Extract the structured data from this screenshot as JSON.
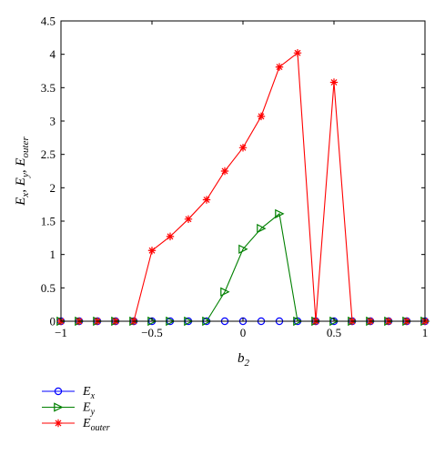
{
  "chart_data": {
    "type": "line",
    "xlabel": {
      "base": "b",
      "sub": "2"
    },
    "ylabel": [
      {
        "base": "E",
        "sub": "x",
        "sep": ", "
      },
      {
        "base": "E",
        "sub": "y",
        "sep": ", "
      },
      {
        "base": "E",
        "sub": "outer",
        "sep": ""
      }
    ],
    "xlim": [
      -1,
      1
    ],
    "ylim": [
      0,
      4.5
    ],
    "xticks": [
      -1,
      -0.5,
      0,
      0.5,
      1
    ],
    "xtick_labels": [
      "−1",
      "−0.5",
      "0",
      "0.5",
      "1"
    ],
    "yticks": [
      0,
      0.5,
      1,
      1.5,
      2,
      2.5,
      3,
      3.5,
      4,
      4.5
    ],
    "ytick_labels": [
      "0",
      "0.5",
      "1",
      "1.5",
      "2",
      "2.5",
      "3",
      "3.5",
      "4",
      "4.5"
    ],
    "grid": false,
    "legend_position": "bottom-left outside",
    "series": [
      {
        "name": {
          "base": "E",
          "sub": "x"
        },
        "color": "#0000ff",
        "marker": "circle",
        "x": [
          -1,
          -0.9,
          -0.8,
          -0.7,
          -0.6,
          -0.5,
          -0.4,
          -0.3,
          -0.2,
          -0.1,
          0,
          0.1,
          0.2,
          0.3,
          0.4,
          0.5,
          0.6,
          0.7,
          0.8,
          0.9,
          1
        ],
        "y": [
          0,
          0,
          0,
          0,
          0,
          0,
          0,
          0,
          0,
          0,
          0,
          0,
          0,
          0,
          0,
          0,
          0,
          0,
          0,
          0,
          0
        ]
      },
      {
        "name": {
          "base": "E",
          "sub": "y"
        },
        "color": "#008000",
        "marker": "triangle-right",
        "x": [
          -1,
          -0.9,
          -0.8,
          -0.7,
          -0.6,
          -0.5,
          -0.4,
          -0.3,
          -0.2,
          -0.1,
          0,
          0.1,
          0.2,
          0.3,
          0.4,
          0.5,
          0.6,
          0.7,
          0.8,
          0.9,
          1
        ],
        "y": [
          0,
          0,
          0,
          0,
          0,
          0,
          0,
          0,
          0,
          0.44,
          1.08,
          1.39,
          1.61,
          0,
          0,
          0,
          0,
          0,
          0,
          0,
          0
        ]
      },
      {
        "name": {
          "base": "E",
          "sub": "outer"
        },
        "color": "#ff0000",
        "marker": "star",
        "x": [
          -1,
          -0.9,
          -0.8,
          -0.7,
          -0.6,
          -0.5,
          -0.4,
          -0.3,
          -0.2,
          -0.1,
          0,
          0.1,
          0.2,
          0.3,
          0.4,
          0.5,
          0.6,
          0.7,
          0.8,
          0.9,
          1
        ],
        "y": [
          0,
          0,
          0,
          0,
          0,
          1.06,
          1.27,
          1.53,
          1.82,
          2.25,
          2.6,
          3.07,
          3.81,
          4.02,
          0,
          3.58,
          0,
          0,
          0,
          0,
          0
        ]
      }
    ]
  }
}
